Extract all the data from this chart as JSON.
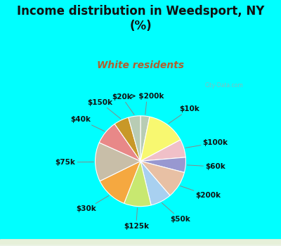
{
  "title": "Income distribution in Weedsport, NY\n(%)",
  "subtitle": "White residents",
  "title_color": "#111111",
  "subtitle_color": "#b06030",
  "bg_cyan": "#00ffff",
  "bg_chart": "#e0f0e8",
  "labels": [
    "> $200k",
    "$10k",
    "$100k",
    "$60k",
    "$200k",
    "$50k",
    "$125k",
    "$30k",
    "$75k",
    "$40k",
    "$150k",
    "$20k"
  ],
  "values": [
    3,
    13,
    6,
    5,
    9,
    7,
    9,
    11,
    13,
    8,
    5,
    4
  ],
  "colors": [
    "#b8ccb0",
    "#f8f870",
    "#f0b8c0",
    "#9898d8",
    "#e8c0a8",
    "#98d0f0",
    "#c8e870",
    "#f0a840",
    "#c8bea8",
    "#e88888",
    "#c89828",
    "#b8ccb0"
  ],
  "startangle": 90,
  "label_fontsize": 7.5,
  "title_fontsize": 12,
  "subtitle_fontsize": 10,
  "watermark": "City-Data.com"
}
